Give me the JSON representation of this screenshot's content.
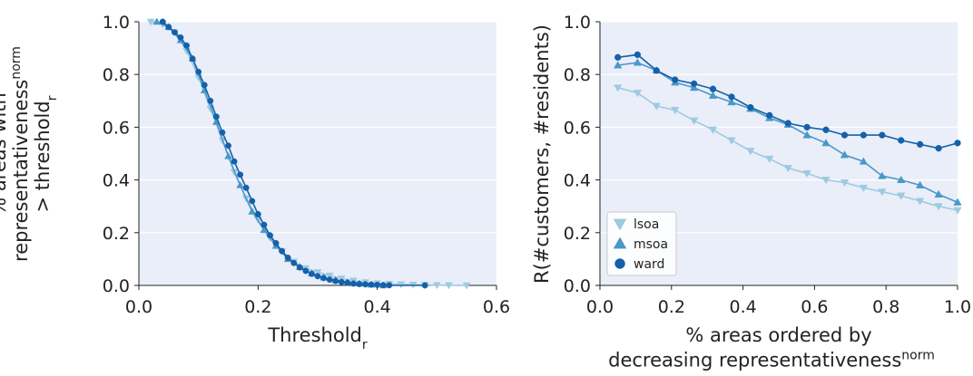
{
  "chart_data": [
    {
      "type": "line",
      "xlabel": "Threshold",
      "xlabel_sub": "r",
      "ylabel_lines": [
        "% areas with",
        "representativeness",
        "> threshold"
      ],
      "ylabel_sup": "norm",
      "ylabel_sub": "r",
      "xlim": [
        0.0,
        0.6
      ],
      "ylim": [
        0.0,
        1.0
      ],
      "xticks": [
        "0.0",
        "0.2",
        "0.4",
        "0.6"
      ],
      "yticks": [
        "0.0",
        "0.2",
        "0.4",
        "0.6",
        "0.8",
        "1.0"
      ],
      "grid": true,
      "series": [
        {
          "name": "lsoa",
          "color": "#9ecae1",
          "marker": "triangle-down",
          "x": [
            0.02,
            0.04,
            0.06,
            0.08,
            0.1,
            0.12,
            0.14,
            0.16,
            0.18,
            0.2,
            0.22,
            0.24,
            0.26,
            0.28,
            0.3,
            0.32,
            0.34,
            0.36,
            0.38,
            0.4,
            0.42,
            0.44,
            0.46,
            0.48,
            0.5,
            0.52,
            0.55
          ],
          "y": [
            1.0,
            0.99,
            0.96,
            0.89,
            0.79,
            0.67,
            0.55,
            0.43,
            0.33,
            0.25,
            0.18,
            0.13,
            0.09,
            0.065,
            0.05,
            0.037,
            0.026,
            0.018,
            0.012,
            0.008,
            0.006,
            0.004,
            0.003,
            0.002,
            0.001,
            0.0005,
            0.0
          ]
        },
        {
          "name": "msoa",
          "color": "#4a98c9",
          "marker": "triangle-up",
          "x": [
            0.03,
            0.05,
            0.07,
            0.09,
            0.11,
            0.13,
            0.15,
            0.17,
            0.19,
            0.21,
            0.23,
            0.25,
            0.27,
            0.29,
            0.31,
            0.33,
            0.35,
            0.37,
            0.39,
            0.41
          ],
          "y": [
            1.0,
            0.98,
            0.93,
            0.86,
            0.74,
            0.62,
            0.49,
            0.38,
            0.28,
            0.21,
            0.15,
            0.1,
            0.07,
            0.045,
            0.03,
            0.02,
            0.012,
            0.007,
            0.003,
            0.0
          ]
        },
        {
          "name": "ward",
          "color": "#1561a9",
          "marker": "circle",
          "x": [
            0.04,
            0.05,
            0.06,
            0.07,
            0.08,
            0.09,
            0.1,
            0.11,
            0.12,
            0.13,
            0.14,
            0.15,
            0.16,
            0.17,
            0.18,
            0.19,
            0.2,
            0.21,
            0.22,
            0.23,
            0.24,
            0.25,
            0.26,
            0.27,
            0.28,
            0.29,
            0.3,
            0.31,
            0.32,
            0.33,
            0.34,
            0.35,
            0.36,
            0.37,
            0.38,
            0.39,
            0.4,
            0.41,
            0.42,
            0.48
          ],
          "y": [
            1.0,
            0.98,
            0.96,
            0.94,
            0.91,
            0.86,
            0.81,
            0.76,
            0.7,
            0.64,
            0.58,
            0.53,
            0.47,
            0.42,
            0.37,
            0.32,
            0.27,
            0.23,
            0.19,
            0.16,
            0.13,
            0.105,
            0.085,
            0.068,
            0.055,
            0.044,
            0.035,
            0.028,
            0.022,
            0.017,
            0.013,
            0.01,
            0.007,
            0.005,
            0.004,
            0.003,
            0.002,
            0.001,
            0.0005,
            0.0
          ]
        }
      ]
    },
    {
      "type": "line",
      "xlabel_lines": [
        "% areas ordered by",
        "decreasing representativeness"
      ],
      "xlabel_sup": "norm",
      "ylabel": "R(#customers, #residents)",
      "xlim": [
        0.0,
        1.0
      ],
      "ylim": [
        0.0,
        1.0
      ],
      "xticks": [
        "0.0",
        "0.2",
        "0.4",
        "0.6",
        "0.8",
        "1.0"
      ],
      "yticks": [
        "0.0",
        "0.2",
        "0.4",
        "0.6",
        "0.8",
        "1.0"
      ],
      "grid": true,
      "legend": "lower-left",
      "series": [
        {
          "name": "lsoa",
          "color": "#9ecae1",
          "marker": "triangle-down",
          "x": [
            0.05,
            0.105,
            0.158,
            0.21,
            0.263,
            0.316,
            0.368,
            0.421,
            0.474,
            0.526,
            0.579,
            0.632,
            0.684,
            0.737,
            0.789,
            0.842,
            0.895,
            0.947,
            1.0
          ],
          "y": [
            0.75,
            0.73,
            0.68,
            0.665,
            0.625,
            0.59,
            0.55,
            0.51,
            0.48,
            0.445,
            0.425,
            0.4,
            0.39,
            0.37,
            0.355,
            0.34,
            0.32,
            0.3,
            0.285
          ]
        },
        {
          "name": "msoa",
          "color": "#4a98c9",
          "marker": "triangle-up",
          "x": [
            0.05,
            0.105,
            0.158,
            0.21,
            0.263,
            0.316,
            0.368,
            0.421,
            0.474,
            0.526,
            0.579,
            0.632,
            0.684,
            0.737,
            0.789,
            0.842,
            0.895,
            0.947,
            1.0
          ],
          "y": [
            0.835,
            0.845,
            0.815,
            0.77,
            0.75,
            0.72,
            0.695,
            0.67,
            0.635,
            0.61,
            0.57,
            0.54,
            0.495,
            0.47,
            0.415,
            0.4,
            0.38,
            0.345,
            0.315
          ]
        },
        {
          "name": "ward",
          "color": "#1561a9",
          "marker": "circle",
          "x": [
            0.05,
            0.105,
            0.158,
            0.21,
            0.263,
            0.316,
            0.368,
            0.421,
            0.474,
            0.526,
            0.579,
            0.632,
            0.684,
            0.737,
            0.789,
            0.842,
            0.895,
            0.947,
            1.0
          ],
          "y": [
            0.865,
            0.875,
            0.815,
            0.78,
            0.765,
            0.745,
            0.715,
            0.675,
            0.645,
            0.615,
            0.6,
            0.59,
            0.57,
            0.57,
            0.57,
            0.55,
            0.535,
            0.52,
            0.54
          ]
        }
      ]
    }
  ]
}
